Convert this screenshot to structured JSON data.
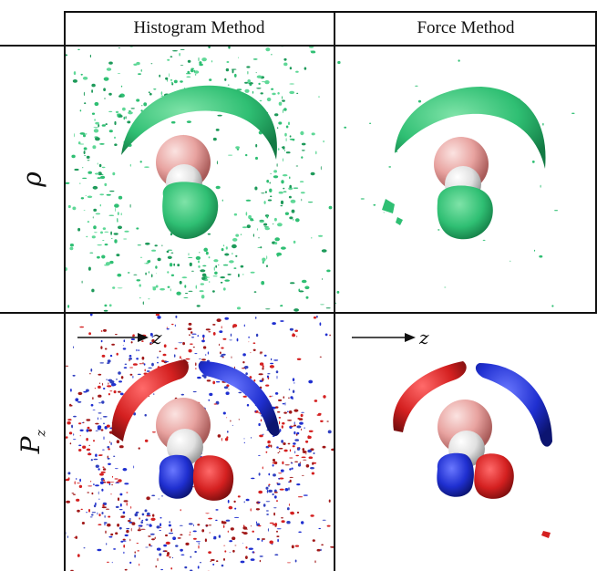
{
  "columns": [
    {
      "id": "histogram",
      "label": "Histogram Method"
    },
    {
      "id": "force",
      "label": "Force Method"
    }
  ],
  "rows": [
    {
      "id": "density",
      "symbol": "ρ",
      "subscript": ""
    },
    {
      "id": "polarization",
      "symbol": "P",
      "subscript": "z"
    }
  ],
  "axis_arrow_label": "z",
  "colors": {
    "density_isosurface": "#2fbf73",
    "positive_isosurface": "#d42020",
    "negative_isosurface": "#1f2fd0",
    "oxygen_sphere": "#e8a3a0",
    "hydrogen_sphere": "#ececec",
    "grid": "#111111"
  },
  "icons": {
    "oxygen": "sphere-icon",
    "hydrogen": "sphere-icon",
    "arrow": "right-arrow-icon"
  }
}
